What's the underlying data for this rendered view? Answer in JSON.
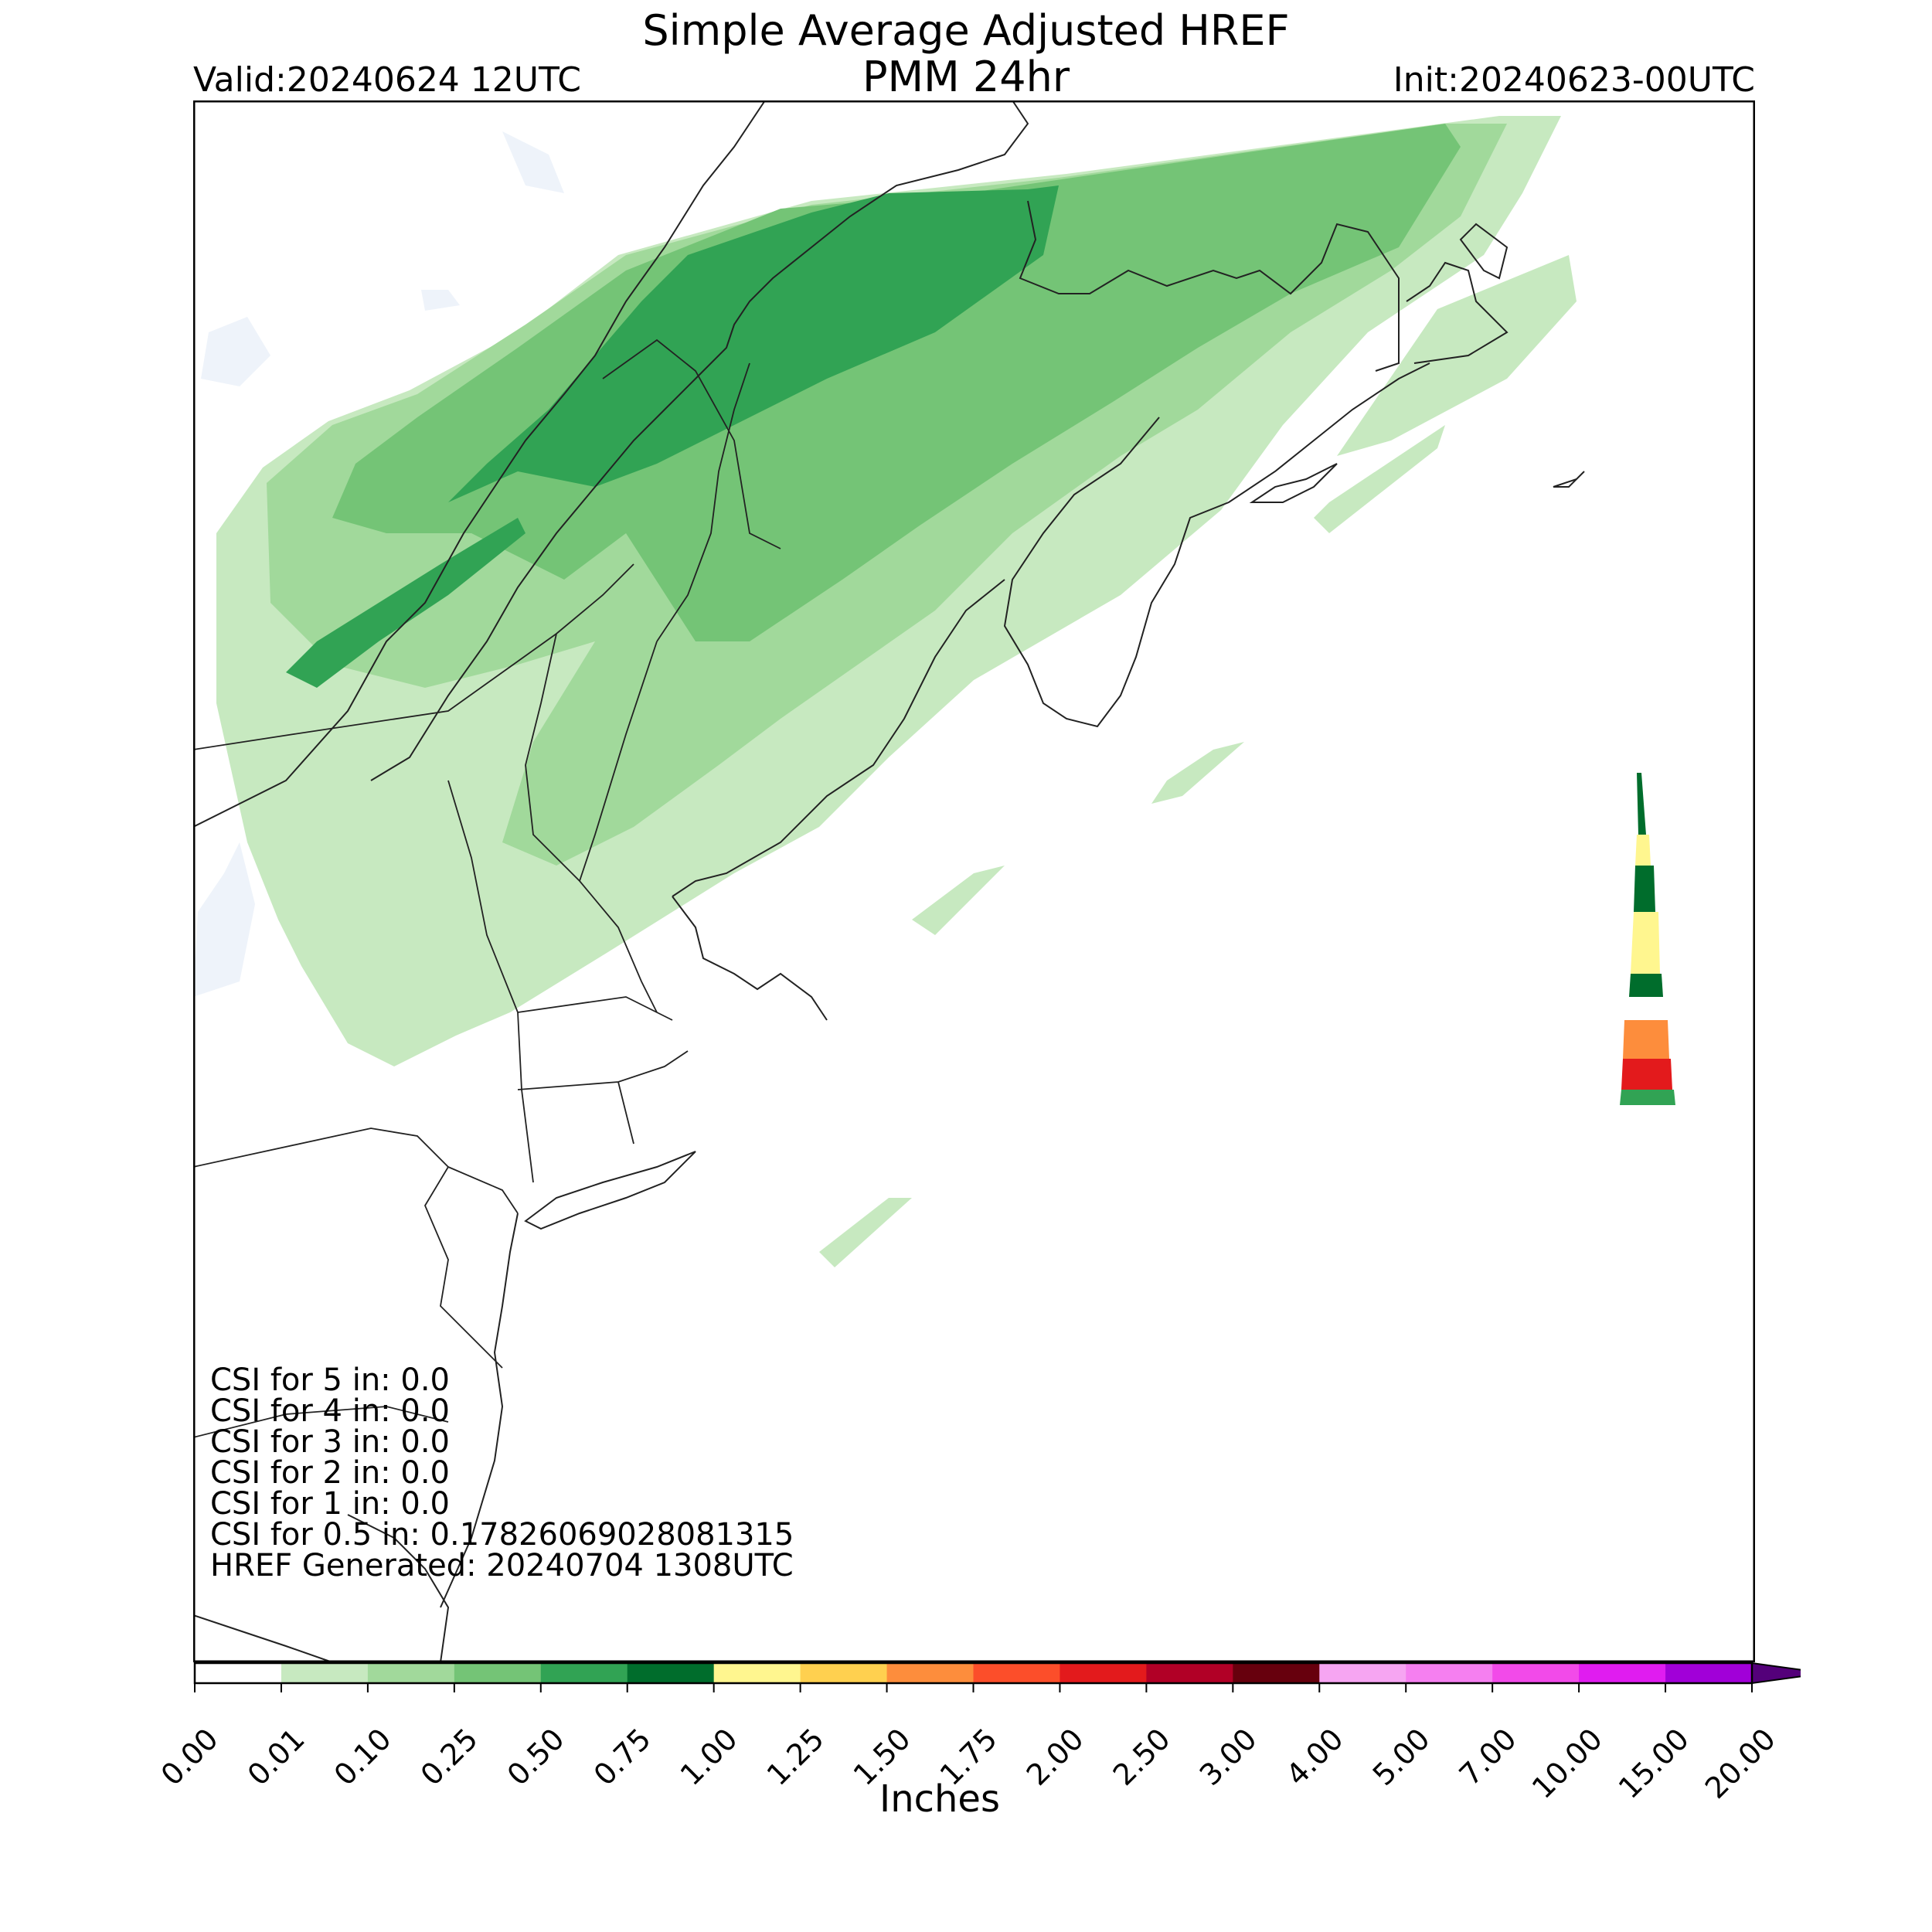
{
  "title": {
    "line1": "Simple Average Adjusted HREF",
    "line2": "PMM 24hr",
    "valid": "Valid:20240624 12UTC",
    "init": "Init:20240623-00UTC"
  },
  "stats": [
    "CSI for 5 in: 0.0",
    "CSI for 4 in: 0.0",
    "CSI for 3 in: 0.0",
    "CSI for 2 in: 0.0",
    "CSI for 1 in: 0.0",
    "CSI for 0.5 in: 0.17826069028081315",
    "HREF Generated: 20240704 1308UTC"
  ],
  "colorbar": {
    "label": "Inches",
    "ticks": [
      "0.00",
      "0.01",
      "0.10",
      "0.25",
      "0.50",
      "0.75",
      "1.00",
      "1.25",
      "1.50",
      "1.75",
      "2.00",
      "2.50",
      "3.00",
      "4.00",
      "5.00",
      "7.00",
      "10.00",
      "15.00",
      "20.00"
    ],
    "colors": [
      "#ffffff",
      "#c7e9c0",
      "#a1d99b",
      "#74c476",
      "#31a354",
      "#006d2c",
      "#fff68f",
      "#ffd04f",
      "#fd8d3c",
      "#fc4e2a",
      "#e31a1c",
      "#b10026",
      "#67000d",
      "#f6a5f2",
      "#f57ff0",
      "#f24ae9",
      "#e01cf0",
      "#a100d8",
      "#7600b8"
    ],
    "extend_color": "#54007a"
  },
  "map_colors": {
    "light": "#c7e9c0",
    "medium": "#a1d99b",
    "green": "#74c476",
    "dark": "#31a354",
    "darkest": "#006d2c",
    "yellow": "#fff68f",
    "orange": "#fd8d3c",
    "red": "#e31a1c",
    "water": "#eef3fa",
    "coast": "#222222"
  }
}
